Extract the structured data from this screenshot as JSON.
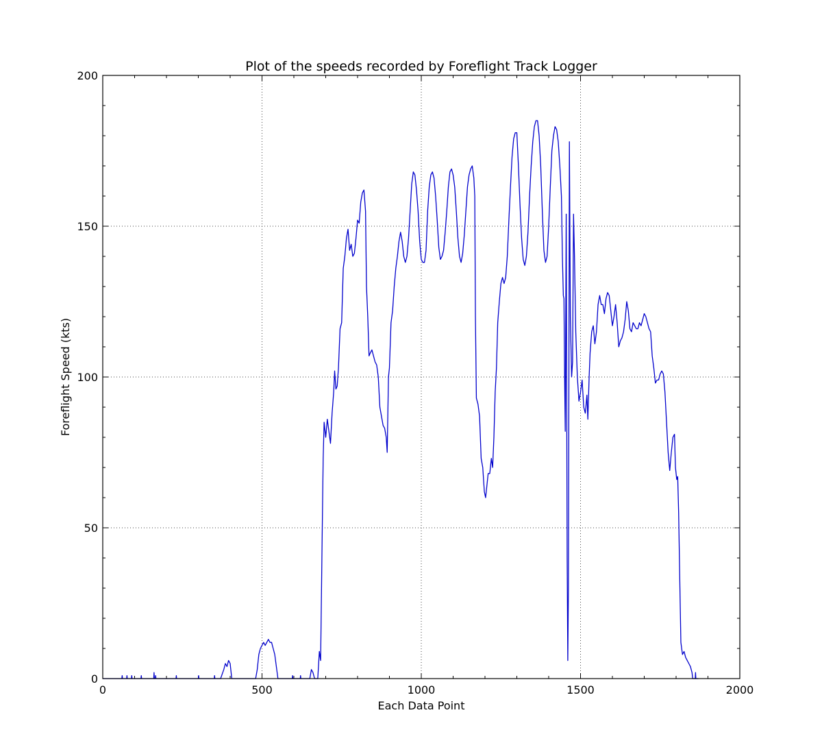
{
  "chart_data": {
    "type": "line",
    "title": "Plot of the speeds recorded by Foreflight Track Logger",
    "xlabel": "Each Data Point",
    "ylabel": "Foreflight Speed (kts)",
    "xlim": [
      0,
      2000
    ],
    "ylim": [
      0,
      200
    ],
    "xticks": [
      0,
      500,
      1000,
      1500,
      2000
    ],
    "yticks": [
      0,
      50,
      100,
      150,
      200
    ],
    "xtick_labels": [
      "0",
      "500",
      "1000",
      "1500",
      "2000"
    ],
    "ytick_labels": [
      "0",
      "50",
      "100",
      "150",
      "200"
    ],
    "grid": true,
    "series": [
      {
        "color": "#0000cc",
        "points": [
          [
            0,
            0
          ],
          [
            60,
            0
          ],
          [
            61,
            1
          ],
          [
            62,
            0
          ],
          [
            75,
            0
          ],
          [
            76,
            1
          ],
          [
            77,
            0
          ],
          [
            90,
            0
          ],
          [
            91,
            1
          ],
          [
            92,
            0
          ],
          [
            120,
            0
          ],
          [
            121,
            1
          ],
          [
            122,
            0
          ],
          [
            160,
            0
          ],
          [
            161,
            2
          ],
          [
            162,
            0
          ],
          [
            165,
            0
          ],
          [
            166,
            1
          ],
          [
            167,
            0
          ],
          [
            230,
            0
          ],
          [
            231,
            1
          ],
          [
            232,
            0
          ],
          [
            300,
            0
          ],
          [
            301,
            1
          ],
          [
            302,
            0
          ],
          [
            350,
            0
          ],
          [
            351,
            1
          ],
          [
            352,
            0
          ],
          [
            370,
            0
          ],
          [
            380,
            3
          ],
          [
            385,
            5
          ],
          [
            390,
            4
          ],
          [
            395,
            6
          ],
          [
            400,
            5
          ],
          [
            405,
            0
          ],
          [
            480,
            0
          ],
          [
            485,
            3
          ],
          [
            490,
            8
          ],
          [
            495,
            10
          ],
          [
            500,
            11
          ],
          [
            505,
            12
          ],
          [
            510,
            11
          ],
          [
            515,
            12
          ],
          [
            520,
            13
          ],
          [
            525,
            12
          ],
          [
            530,
            12
          ],
          [
            535,
            10
          ],
          [
            540,
            8
          ],
          [
            545,
            4
          ],
          [
            550,
            0
          ],
          [
            595,
            0
          ],
          [
            596,
            1
          ],
          [
            597,
            0
          ],
          [
            620,
            0
          ],
          [
            621,
            1
          ],
          [
            622,
            0
          ],
          [
            650,
            0
          ],
          [
            655,
            3
          ],
          [
            660,
            2
          ],
          [
            665,
            0
          ],
          [
            675,
            0
          ],
          [
            680,
            9
          ],
          [
            684,
            6
          ],
          [
            688,
            40
          ],
          [
            692,
            73
          ],
          [
            695,
            85
          ],
          [
            700,
            80
          ],
          [
            705,
            86
          ],
          [
            710,
            82
          ],
          [
            715,
            78
          ],
          [
            720,
            88
          ],
          [
            725,
            95
          ],
          [
            728,
            102
          ],
          [
            732,
            96
          ],
          [
            736,
            97
          ],
          [
            740,
            103
          ],
          [
            745,
            116
          ],
          [
            750,
            118
          ],
          [
            755,
            136
          ],
          [
            760,
            140
          ],
          [
            765,
            146
          ],
          [
            770,
            149
          ],
          [
            775,
            142
          ],
          [
            780,
            144
          ],
          [
            785,
            140
          ],
          [
            790,
            141
          ],
          [
            795,
            146
          ],
          [
            800,
            152
          ],
          [
            805,
            151
          ],
          [
            810,
            158
          ],
          [
            815,
            161
          ],
          [
            820,
            162
          ],
          [
            825,
            155
          ],
          [
            828,
            130
          ],
          [
            832,
            120
          ],
          [
            836,
            107
          ],
          [
            840,
            108
          ],
          [
            845,
            109
          ],
          [
            850,
            107
          ],
          [
            855,
            105
          ],
          [
            860,
            104
          ],
          [
            865,
            100
          ],
          [
            870,
            90
          ],
          [
            875,
            87
          ],
          [
            880,
            84
          ],
          [
            885,
            83
          ],
          [
            890,
            80
          ],
          [
            893,
            75
          ],
          [
            897,
            100
          ],
          [
            900,
            103
          ],
          [
            905,
            118
          ],
          [
            910,
            122
          ],
          [
            915,
            130
          ],
          [
            920,
            136
          ],
          [
            925,
            140
          ],
          [
            930,
            145
          ],
          [
            935,
            148
          ],
          [
            940,
            145
          ],
          [
            945,
            140
          ],
          [
            950,
            138
          ],
          [
            955,
            140
          ],
          [
            960,
            146
          ],
          [
            965,
            155
          ],
          [
            970,
            164
          ],
          [
            975,
            168
          ],
          [
            980,
            167
          ],
          [
            985,
            162
          ],
          [
            990,
            155
          ],
          [
            995,
            145
          ],
          [
            1000,
            139
          ],
          [
            1005,
            138
          ],
          [
            1010,
            138
          ],
          [
            1015,
            142
          ],
          [
            1020,
            155
          ],
          [
            1025,
            163
          ],
          [
            1030,
            167
          ],
          [
            1035,
            168
          ],
          [
            1040,
            166
          ],
          [
            1045,
            160
          ],
          [
            1050,
            152
          ],
          [
            1055,
            143
          ],
          [
            1060,
            139
          ],
          [
            1065,
            140
          ],
          [
            1070,
            142
          ],
          [
            1075,
            148
          ],
          [
            1080,
            155
          ],
          [
            1085,
            163
          ],
          [
            1090,
            168
          ],
          [
            1095,
            169
          ],
          [
            1100,
            167
          ],
          [
            1105,
            163
          ],
          [
            1110,
            155
          ],
          [
            1115,
            146
          ],
          [
            1120,
            140
          ],
          [
            1125,
            138
          ],
          [
            1130,
            141
          ],
          [
            1135,
            147
          ],
          [
            1140,
            155
          ],
          [
            1145,
            163
          ],
          [
            1150,
            167
          ],
          [
            1155,
            169
          ],
          [
            1160,
            170
          ],
          [
            1165,
            166
          ],
          [
            1168,
            160
          ],
          [
            1170,
            120
          ],
          [
            1173,
            93
          ],
          [
            1178,
            91
          ],
          [
            1183,
            87
          ],
          [
            1188,
            73
          ],
          [
            1193,
            70
          ],
          [
            1198,
            62
          ],
          [
            1202,
            60
          ],
          [
            1205,
            63
          ],
          [
            1210,
            68
          ],
          [
            1215,
            68
          ],
          [
            1220,
            73
          ],
          [
            1224,
            70
          ],
          [
            1228,
            80
          ],
          [
            1232,
            95
          ],
          [
            1236,
            103
          ],
          [
            1240,
            118
          ],
          [
            1245,
            125
          ],
          [
            1250,
            131
          ],
          [
            1255,
            133
          ],
          [
            1260,
            131
          ],
          [
            1265,
            133
          ],
          [
            1270,
            140
          ],
          [
            1275,
            152
          ],
          [
            1280,
            163
          ],
          [
            1285,
            173
          ],
          [
            1290,
            179
          ],
          [
            1295,
            181
          ],
          [
            1300,
            181
          ],
          [
            1305,
            170
          ],
          [
            1310,
            157
          ],
          [
            1315,
            146
          ],
          [
            1320,
            139
          ],
          [
            1325,
            137
          ],
          [
            1330,
            140
          ],
          [
            1335,
            148
          ],
          [
            1340,
            160
          ],
          [
            1345,
            170
          ],
          [
            1350,
            178
          ],
          [
            1355,
            183
          ],
          [
            1360,
            185
          ],
          [
            1365,
            185
          ],
          [
            1370,
            180
          ],
          [
            1375,
            170
          ],
          [
            1380,
            155
          ],
          [
            1385,
            142
          ],
          [
            1390,
            138
          ],
          [
            1395,
            140
          ],
          [
            1400,
            150
          ],
          [
            1405,
            163
          ],
          [
            1410,
            175
          ],
          [
            1415,
            180
          ],
          [
            1420,
            183
          ],
          [
            1425,
            182
          ],
          [
            1430,
            178
          ],
          [
            1435,
            170
          ],
          [
            1440,
            160
          ],
          [
            1443,
            140
          ],
          [
            1446,
            127
          ],
          [
            1448,
            126
          ],
          [
            1450,
            100
          ],
          [
            1452,
            82
          ],
          [
            1455,
            154
          ],
          [
            1458,
            40
          ],
          [
            1460,
            6
          ],
          [
            1462,
            30
          ],
          [
            1465,
            178
          ],
          [
            1468,
            120
          ],
          [
            1472,
            100
          ],
          [
            1475,
            105
          ],
          [
            1478,
            154
          ],
          [
            1481,
            140
          ],
          [
            1485,
            115
          ],
          [
            1490,
            100
          ],
          [
            1495,
            92
          ],
          [
            1500,
            95
          ],
          [
            1505,
            99
          ],
          [
            1510,
            90
          ],
          [
            1515,
            88
          ],
          [
            1520,
            94
          ],
          [
            1523,
            86
          ],
          [
            1527,
            100
          ],
          [
            1530,
            108
          ],
          [
            1535,
            115
          ],
          [
            1540,
            117
          ],
          [
            1545,
            111
          ],
          [
            1550,
            115
          ],
          [
            1555,
            124
          ],
          [
            1560,
            127
          ],
          [
            1565,
            124
          ],
          [
            1570,
            124
          ],
          [
            1575,
            121
          ],
          [
            1580,
            126
          ],
          [
            1585,
            128
          ],
          [
            1590,
            127
          ],
          [
            1595,
            122
          ],
          [
            1600,
            117
          ],
          [
            1605,
            120
          ],
          [
            1610,
            124
          ],
          [
            1615,
            118
          ],
          [
            1620,
            110
          ],
          [
            1625,
            112
          ],
          [
            1630,
            113
          ],
          [
            1635,
            115
          ],
          [
            1640,
            119
          ],
          [
            1645,
            125
          ],
          [
            1650,
            122
          ],
          [
            1655,
            116
          ],
          [
            1660,
            115
          ],
          [
            1665,
            118
          ],
          [
            1670,
            117
          ],
          [
            1675,
            116
          ],
          [
            1680,
            116
          ],
          [
            1685,
            118
          ],
          [
            1690,
            117
          ],
          [
            1695,
            119
          ],
          [
            1700,
            121
          ],
          [
            1705,
            120
          ],
          [
            1710,
            118
          ],
          [
            1715,
            116
          ],
          [
            1720,
            115
          ],
          [
            1725,
            107
          ],
          [
            1730,
            103
          ],
          [
            1735,
            98
          ],
          [
            1740,
            99
          ],
          [
            1745,
            99
          ],
          [
            1750,
            101
          ],
          [
            1755,
            102
          ],
          [
            1760,
            101
          ],
          [
            1765,
            95
          ],
          [
            1770,
            85
          ],
          [
            1775,
            75
          ],
          [
            1780,
            69
          ],
          [
            1785,
            75
          ],
          [
            1790,
            80
          ],
          [
            1795,
            81
          ],
          [
            1798,
            70
          ],
          [
            1802,
            66
          ],
          [
            1805,
            67
          ],
          [
            1808,
            55
          ],
          [
            1812,
            30
          ],
          [
            1815,
            12
          ],
          [
            1820,
            8
          ],
          [
            1825,
            9
          ],
          [
            1830,
            7
          ],
          [
            1835,
            6
          ],
          [
            1840,
            5
          ],
          [
            1845,
            4
          ],
          [
            1850,
            2
          ],
          [
            1852,
            0
          ],
          [
            1860,
            0
          ],
          [
            1861,
            2
          ],
          [
            1862,
            0
          ],
          [
            1870,
            0
          ]
        ]
      }
    ]
  }
}
